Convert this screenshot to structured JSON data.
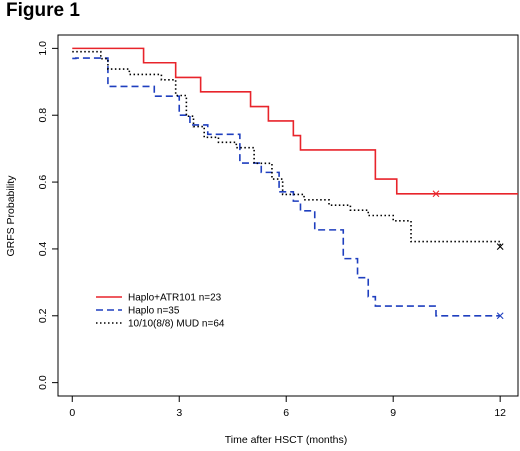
{
  "figure_title": "Figure 1",
  "chart_data": {
    "type": "line",
    "title": "",
    "xlabel": "Time after HSCT (months)",
    "ylabel": "GRFS Probability",
    "xlim": [
      -0.4,
      12.5
    ],
    "ylim": [
      -0.04,
      1.04
    ],
    "xticks": [
      0,
      3,
      6,
      9,
      12
    ],
    "xtick_labels": [
      "0",
      "3",
      "6",
      "9",
      "12"
    ],
    "yticks": [
      0.0,
      0.2,
      0.4,
      0.6,
      0.8,
      1.0
    ],
    "ytick_labels": [
      "0.0",
      "0.2",
      "0.4",
      "0.6",
      "0.8",
      "1.0"
    ],
    "grid": false,
    "legend_position": "bottom-left",
    "step": true,
    "series": [
      {
        "name": "Haplo+ATR101 n=23",
        "color": "#e8242b",
        "dash": "solid",
        "x": [
          0,
          2.0,
          2.9,
          3.6,
          5.0,
          5.5,
          6.2,
          6.4,
          8.5,
          9.1,
          12.5
        ],
        "y": [
          1.0,
          0.957,
          0.913,
          0.87,
          0.826,
          0.783,
          0.739,
          0.696,
          0.609,
          0.565,
          0.565
        ],
        "censor": [
          [
            10.2,
            0.565
          ]
        ]
      },
      {
        "name": "Haplo n=35",
        "color": "#1f3fbf",
        "dash": "dashed",
        "x": [
          0,
          0.1,
          1.0,
          2.3,
          3.0,
          3.3,
          3.8,
          4.7,
          5.3,
          5.8,
          6.2,
          6.4,
          6.8,
          7.6,
          8.0,
          8.3,
          8.5,
          10.2,
          12.0
        ],
        "y": [
          0.97,
          0.971,
          0.886,
          0.857,
          0.8,
          0.771,
          0.743,
          0.657,
          0.629,
          0.571,
          0.543,
          0.514,
          0.457,
          0.371,
          0.314,
          0.257,
          0.229,
          0.2,
          0.2
        ],
        "censor": [
          [
            12.0,
            0.2
          ]
        ]
      },
      {
        "name": "10/10(8/8) MUD n=64",
        "color": "#000000",
        "dash": "dotted",
        "x": [
          0,
          0.8,
          1.0,
          1.6,
          2.5,
          2.9,
          3.2,
          3.4,
          3.7,
          4.1,
          4.6,
          5.1,
          5.6,
          5.9,
          6.5,
          7.2,
          7.8,
          8.3,
          9.0,
          9.5,
          10.0,
          12.0
        ],
        "y": [
          0.99,
          0.969,
          0.938,
          0.922,
          0.906,
          0.859,
          0.797,
          0.766,
          0.734,
          0.719,
          0.703,
          0.656,
          0.609,
          0.563,
          0.547,
          0.531,
          0.516,
          0.5,
          0.484,
          0.422,
          0.422,
          0.407
        ],
        "censor": [
          [
            12.0,
            0.407
          ]
        ]
      }
    ]
  }
}
